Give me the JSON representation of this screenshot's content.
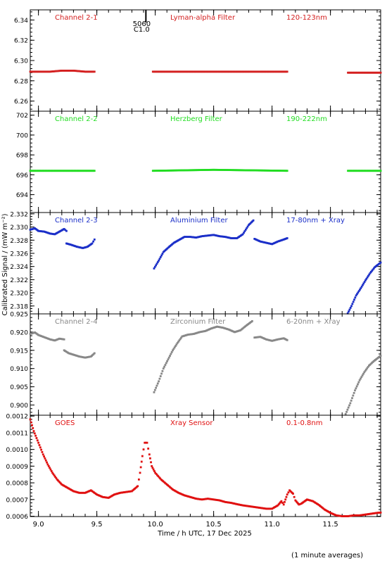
{
  "figure": {
    "ylabel": "Calibrated Signal / (mW m⁻²)",
    "xlabel": "Time / h UTC, 17 Dec 2025",
    "footnote": "(1 minute averages)",
    "marker": {
      "label_top": "5060",
      "label_bottom": "C1.0",
      "x": 9.92
    }
  },
  "chart_data": [
    {
      "type": "scatter",
      "panel_labels": [
        "Channel 2-1",
        "Lyman-alpha Filter",
        "120-123nm"
      ],
      "color": "#d42020",
      "xlim": [
        8.93,
        11.93
      ],
      "ylim": [
        6.25,
        6.35
      ],
      "yticks": [
        6.26,
        6.28,
        6.3,
        6.32,
        6.34
      ],
      "ytick_labels": [
        "6.26",
        "6.28",
        "6.30",
        "6.32",
        "6.34"
      ],
      "segments": [
        {
          "x": [
            8.93,
            9.0,
            9.1,
            9.2,
            9.25,
            9.3,
            9.4,
            9.48
          ],
          "y": [
            6.289,
            6.289,
            6.289,
            6.29,
            6.29,
            6.29,
            6.289,
            6.289
          ]
        },
        {
          "x": [
            9.98,
            10.2,
            10.5,
            10.8,
            10.9,
            11.13
          ],
          "y": [
            6.289,
            6.289,
            6.289,
            6.289,
            6.289,
            6.289
          ]
        },
        {
          "x": [
            11.65,
            11.93
          ],
          "y": [
            6.288,
            6.288
          ]
        }
      ]
    },
    {
      "type": "scatter",
      "panel_labels": [
        "Channel 2-2",
        "Herzberg Filter",
        "190-222nm"
      ],
      "color": "#22dd22",
      "xlim": [
        8.93,
        11.93
      ],
      "ylim": [
        692.2,
        702.4
      ],
      "yticks": [
        694,
        696,
        698,
        700,
        702
      ],
      "ytick_labels": [
        "694",
        "696",
        "698",
        "700",
        "702"
      ],
      "segments": [
        {
          "x": [
            8.93,
            9.48
          ],
          "y": [
            696.4,
            696.4
          ]
        },
        {
          "x": [
            9.98,
            10.5,
            11.13
          ],
          "y": [
            696.4,
            696.5,
            696.4
          ]
        },
        {
          "x": [
            11.65,
            11.93
          ],
          "y": [
            696.4,
            696.4
          ]
        }
      ]
    },
    {
      "type": "scatter",
      "panel_labels": [
        "Channel 2-3",
        "Aluminium Filter",
        "17-80nm + Xray"
      ],
      "color": "#1a2ec8",
      "xlim": [
        8.93,
        11.93
      ],
      "ylim": [
        2.3168,
        2.3322
      ],
      "yticks": [
        2.318,
        2.32,
        2.322,
        2.324,
        2.326,
        2.328,
        2.33,
        2.332
      ],
      "ytick_labels": [
        "2.318",
        "2.320",
        "2.322",
        "2.324",
        "2.326",
        "2.328",
        "2.330",
        "2.332"
      ],
      "segments": [
        {
          "x": [
            8.93,
            8.97,
            9.0,
            9.05,
            9.1,
            9.14,
            9.18,
            9.22,
            9.24
          ],
          "y": [
            2.3296,
            2.3298,
            2.3294,
            2.3293,
            2.329,
            2.3289,
            2.3293,
            2.3297,
            2.3294
          ]
        },
        {
          "x": [
            9.24,
            9.28,
            9.33,
            9.38,
            9.42,
            9.46,
            9.48
          ],
          "y": [
            2.3275,
            2.3273,
            2.327,
            2.3268,
            2.327,
            2.3275,
            2.3281
          ]
        },
        {
          "x": [
            9.99,
            10.03,
            10.07,
            10.12,
            10.16,
            10.2,
            10.25,
            10.3,
            10.35,
            10.4,
            10.45,
            10.5,
            10.55,
            10.6,
            10.65,
            10.7,
            10.75,
            10.8,
            10.84
          ],
          "y": [
            2.3237,
            2.3249,
            2.3262,
            2.327,
            2.3276,
            2.328,
            2.3285,
            2.3285,
            2.3284,
            2.3286,
            2.3287,
            2.3288,
            2.3286,
            2.3285,
            2.3283,
            2.3283,
            2.3289,
            2.3303,
            2.331
          ]
        },
        {
          "x": [
            10.85,
            10.9,
            10.95,
            11.0,
            11.05,
            11.1,
            11.13
          ],
          "y": [
            2.3282,
            2.3278,
            2.3276,
            2.3274,
            2.3278,
            2.3281,
            2.3283
          ]
        },
        {
          "x": [
            11.64,
            11.68,
            11.72,
            11.76,
            11.8,
            11.84,
            11.88,
            11.93
          ],
          "y": [
            2.3166,
            2.318,
            2.3196,
            2.3207,
            2.3219,
            2.323,
            2.3239,
            2.3246
          ]
        }
      ]
    },
    {
      "type": "scatter",
      "panel_labels": [
        "Channel 2-4",
        "Zirconium Filter",
        "6-20nm + Xray"
      ],
      "color": "#888888",
      "xlim": [
        8.93,
        11.93
      ],
      "ylim": [
        0.8972,
        0.925
      ],
      "yticks": [
        0.9,
        0.905,
        0.91,
        0.915,
        0.92,
        0.925
      ],
      "ytick_labels": [
        "0.900",
        "0.905",
        "0.910",
        "0.915",
        "0.920",
        "0.925"
      ],
      "segments": [
        {
          "x": [
            8.93,
            8.97,
            9.0,
            9.05,
            9.1,
            9.14,
            9.18,
            9.22
          ],
          "y": [
            0.9195,
            0.9199,
            0.9192,
            0.9186,
            0.918,
            0.9177,
            0.9182,
            0.918
          ]
        },
        {
          "x": [
            9.22,
            9.26,
            9.3,
            9.35,
            9.4,
            9.45,
            9.48
          ],
          "y": [
            0.915,
            0.9142,
            0.9138,
            0.9133,
            0.913,
            0.9133,
            0.9142
          ]
        },
        {
          "x": [
            9.99,
            10.03,
            10.07,
            10.11,
            10.15,
            10.19,
            10.23,
            10.28,
            10.33,
            10.38,
            10.43,
            10.48,
            10.53,
            10.58,
            10.63,
            10.68,
            10.73,
            10.78,
            10.83
          ],
          "y": [
            0.9035,
            0.9065,
            0.91,
            0.9125,
            0.915,
            0.917,
            0.9188,
            0.9193,
            0.9195,
            0.92,
            0.9203,
            0.921,
            0.9215,
            0.9212,
            0.9207,
            0.92,
            0.9205,
            0.9218,
            0.923
          ]
        },
        {
          "x": [
            10.85,
            10.9,
            10.95,
            11.0,
            11.05,
            11.1,
            11.13
          ],
          "y": [
            0.9185,
            0.9187,
            0.918,
            0.9176,
            0.918,
            0.9183,
            0.9178
          ]
        },
        {
          "x": [
            11.63,
            11.67,
            11.71,
            11.75,
            11.79,
            11.83,
            11.87,
            11.93
          ],
          "y": [
            0.8975,
            0.9005,
            0.904,
            0.9068,
            0.909,
            0.9108,
            0.912,
            0.9135
          ]
        }
      ]
    },
    {
      "type": "scatter",
      "panel_labels": [
        "GOES",
        "Xray Sensor",
        "0.1-0.8nm"
      ],
      "color": "#e01010",
      "xlim": [
        8.93,
        11.93
      ],
      "ylim": [
        0.000598,
        0.001205
      ],
      "yticks": [
        0.0006,
        0.0007,
        0.0008,
        0.0009,
        0.001,
        0.0011,
        0.0012
      ],
      "ytick_labels": [
        "0.0006",
        "0.0007",
        "0.0008",
        "0.0009",
        "0.0010",
        "0.0011",
        "0.0012"
      ],
      "xticks": [
        9.0,
        9.5,
        10.0,
        10.5,
        11.0,
        11.5
      ],
      "xtick_labels": [
        "9.0",
        "9.5",
        "10.0",
        "10.5",
        "11.0",
        "11.5"
      ],
      "segments": [
        {
          "x": [
            8.93,
            8.96,
            9.0,
            9.04,
            9.08,
            9.12,
            9.16,
            9.2,
            9.25,
            9.3,
            9.35,
            9.4,
            9.45,
            9.5,
            9.55,
            9.6,
            9.65,
            9.7,
            9.75,
            9.8,
            9.85,
            9.87,
            9.89,
            9.91,
            9.93,
            9.95,
            9.97,
            10.0,
            10.05,
            10.1,
            10.15,
            10.2,
            10.25,
            10.3,
            10.35,
            10.4,
            10.45,
            10.5,
            10.55,
            10.6,
            10.65,
            10.7,
            10.75,
            10.8,
            10.85,
            10.9,
            10.95,
            11.0,
            11.05,
            11.08,
            11.1,
            11.13,
            11.15,
            11.18,
            11.2,
            11.23,
            11.25,
            11.28,
            11.3,
            11.35,
            11.4,
            11.45,
            11.5,
            11.55,
            11.6,
            11.65,
            11.7,
            11.75,
            11.8,
            11.85,
            11.9,
            11.93
          ],
          "y": [
            0.00118,
            0.00111,
            0.00104,
            0.00097,
            0.00091,
            0.00086,
            0.00082,
            0.00079,
            0.00077,
            0.00075,
            0.00074,
            0.00074,
            0.000755,
            0.00073,
            0.000715,
            0.00071,
            0.00073,
            0.00074,
            0.000745,
            0.00075,
            0.00078,
            0.00086,
            0.00096,
            0.00104,
            0.00104,
            0.00097,
            0.0009,
            0.00086,
            0.00082,
            0.00079,
            0.00076,
            0.00074,
            0.000725,
            0.000715,
            0.000705,
            0.0007,
            0.000705,
            0.0007,
            0.000695,
            0.000685,
            0.00068,
            0.000672,
            0.000665,
            0.00066,
            0.000655,
            0.00065,
            0.000645,
            0.000645,
            0.000665,
            0.00069,
            0.00067,
            0.00073,
            0.000755,
            0.000735,
            0.000695,
            0.00067,
            0.000675,
            0.00069,
            0.0007,
            0.00069,
            0.000668,
            0.00064,
            0.00062,
            0.000605,
            0.0006,
            0.0006,
            0.000605,
            0.000605,
            0.00061,
            0.000615,
            0.00062,
            0.000622
          ]
        }
      ]
    }
  ]
}
